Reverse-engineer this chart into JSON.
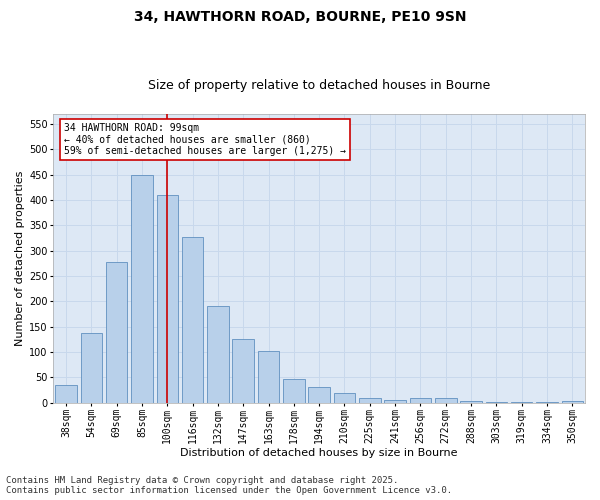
{
  "title1": "34, HAWTHORN ROAD, BOURNE, PE10 9SN",
  "title2": "Size of property relative to detached houses in Bourne",
  "xlabel": "Distribution of detached houses by size in Bourne",
  "ylabel": "Number of detached properties",
  "categories": [
    "38sqm",
    "54sqm",
    "69sqm",
    "85sqm",
    "100sqm",
    "116sqm",
    "132sqm",
    "147sqm",
    "163sqm",
    "178sqm",
    "194sqm",
    "210sqm",
    "225sqm",
    "241sqm",
    "256sqm",
    "272sqm",
    "288sqm",
    "303sqm",
    "319sqm",
    "334sqm",
    "350sqm"
  ],
  "values": [
    35,
    137,
    277,
    450,
    410,
    327,
    190,
    125,
    101,
    46,
    31,
    18,
    8,
    5,
    9,
    8,
    3,
    2,
    1,
    1,
    4
  ],
  "bar_color": "#b8d0ea",
  "bar_edge_color": "#6090c0",
  "vline_color": "#cc0000",
  "annotation_text": "34 HAWTHORN ROAD: 99sqm\n← 40% of detached houses are smaller (860)\n59% of semi-detached houses are larger (1,275) →",
  "annotation_box_color": "#ffffff",
  "annotation_box_edge_color": "#cc0000",
  "ylim": [
    0,
    570
  ],
  "yticks": [
    0,
    50,
    100,
    150,
    200,
    250,
    300,
    350,
    400,
    450,
    500,
    550
  ],
  "grid_color": "#c8d8ec",
  "background_color": "#dde8f5",
  "footer_text": "Contains HM Land Registry data © Crown copyright and database right 2025.\nContains public sector information licensed under the Open Government Licence v3.0.",
  "title_fontsize": 10,
  "subtitle_fontsize": 9,
  "axis_label_fontsize": 8,
  "tick_fontsize": 7,
  "annot_fontsize": 7,
  "footer_fontsize": 6.5
}
